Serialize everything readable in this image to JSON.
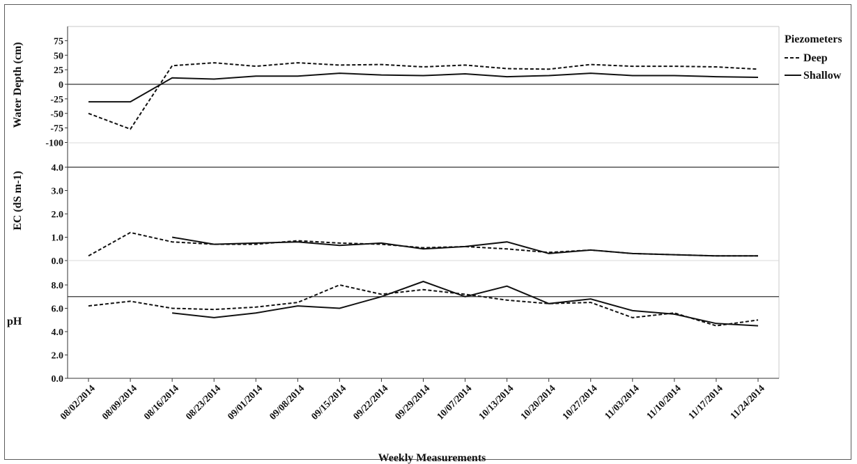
{
  "chart_data": {
    "type": "line",
    "x": [
      "08/02/2014",
      "08/09/2014",
      "08/16/2014",
      "08/23/2014",
      "09/01/2014",
      "09/08/2014",
      "09/15/2014",
      "09/22/2014",
      "09/29/2014",
      "10/07/2014",
      "10/13/2014",
      "10/20/2014",
      "10/27/2014",
      "11/03/2014",
      "11/10/2014",
      "11/17/2014",
      "11/24/2014"
    ],
    "xlabel": "Weekly Measurements",
    "legend": {
      "title": "Piezometers",
      "position": "right",
      "entries": [
        {
          "label": "Deep",
          "style": "dashed"
        },
        {
          "label": "Shallow",
          "style": "solid"
        }
      ]
    },
    "panels": [
      {
        "id": "depth",
        "ylabel": "Water Depth (cm)",
        "ylim": [
          -100,
          75
        ],
        "yticks": [
          "75",
          "50",
          "25",
          "0",
          "-25",
          "-50",
          "-75",
          "-100"
        ],
        "yticks_values": [
          75,
          50,
          25,
          0,
          -25,
          -50,
          -75,
          -100
        ],
        "reference_line": 0,
        "series": [
          {
            "name": "Deep",
            "style": "dashed",
            "values": [
              -50,
              -77,
              32,
              37,
              31,
              37,
              33,
              34,
              30,
              33,
              27,
              26,
              34,
              31,
              31,
              30,
              26
            ]
          },
          {
            "name": "Shallow",
            "style": "solid",
            "values": [
              -30,
              -30,
              11,
              9,
              14,
              14,
              19,
              16,
              15,
              18,
              13,
              15,
              19,
              15,
              15,
              13,
              12
            ]
          }
        ]
      },
      {
        "id": "ec",
        "ylabel": "EC (dS m-1)",
        "ylim": [
          0,
          4
        ],
        "yticks": [
          "4.0",
          "3.0",
          "2.0",
          "1.0",
          "0.0"
        ],
        "yticks_values": [
          4,
          3,
          2,
          1,
          0
        ],
        "reference_line": 4,
        "series": [
          {
            "name": "Deep",
            "style": "dashed",
            "values": [
              0.2,
              1.2,
              0.8,
              0.7,
              0.7,
              0.85,
              0.75,
              0.7,
              0.55,
              0.6,
              0.5,
              0.35,
              0.45,
              0.3,
              0.25,
              0.2,
              0.2
            ]
          },
          {
            "name": "Shallow",
            "style": "solid",
            "values": [
              null,
              null,
              1.0,
              0.7,
              0.75,
              0.8,
              0.65,
              0.75,
              0.5,
              0.6,
              0.8,
              0.3,
              0.45,
              0.3,
              0.25,
              0.2,
              0.2
            ]
          }
        ]
      },
      {
        "id": "ph",
        "ylabel": "pH",
        "ylim": [
          0,
          8.5
        ],
        "yticks": [
          "8.0",
          "6.0",
          "4.0",
          "2.0",
          "0.0"
        ],
        "yticks_values": [
          8,
          6,
          4,
          2,
          0
        ],
        "reference_line": 7,
        "series": [
          {
            "name": "Deep",
            "style": "dashed",
            "values": [
              6.2,
              6.6,
              6.0,
              5.9,
              6.1,
              6.5,
              8.0,
              7.2,
              7.6,
              7.2,
              6.7,
              6.4,
              6.5,
              5.2,
              5.6,
              4.5,
              5.0
            ]
          },
          {
            "name": "Shallow",
            "style": "solid",
            "values": [
              null,
              null,
              5.6,
              5.2,
              5.6,
              6.2,
              6.0,
              7.0,
              8.3,
              7.0,
              7.9,
              6.4,
              6.8,
              5.8,
              5.5,
              4.7,
              4.5
            ]
          }
        ]
      }
    ]
  }
}
